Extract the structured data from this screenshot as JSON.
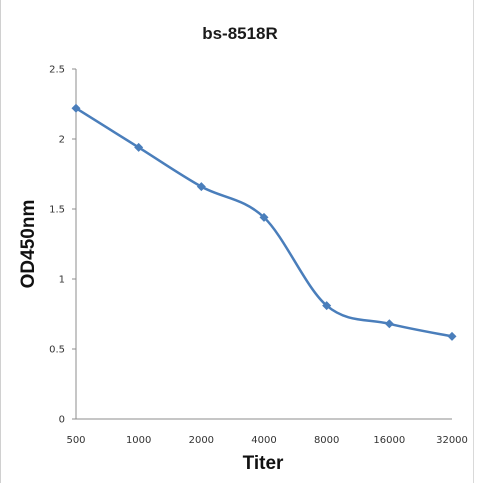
{
  "chart_data": {
    "type": "line",
    "title": "bs-8518R",
    "xlabel": "Titer",
    "ylabel": "OD450nm",
    "categories": [
      "500",
      "1000",
      "2000",
      "4000",
      "8000",
      "16000",
      "32000"
    ],
    "series": [
      {
        "values": [
          2.22,
          1.94,
          1.66,
          1.44,
          0.81,
          0.68,
          0.59
        ]
      }
    ],
    "ylim": [
      0,
      2.5
    ],
    "yticks": [
      "0",
      "0.5",
      "1",
      "1.5",
      "2",
      "2.5"
    ],
    "grid": false,
    "line_color": "#4a7ebb",
    "marker": "diamond",
    "smooth": true
  }
}
